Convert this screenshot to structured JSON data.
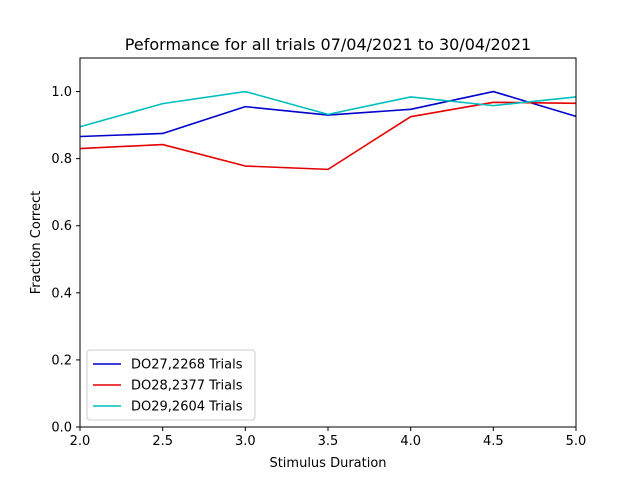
{
  "chart_data": {
    "type": "line",
    "title": "Peformance for all trials 07/04/2021 to 30/04/2021",
    "xlabel": "Stimulus Duration",
    "ylabel": "Fraction Correct",
    "xlim": [
      2.0,
      5.0
    ],
    "ylim": [
      0.0,
      1.1
    ],
    "x": [
      2.0,
      2.5,
      3.0,
      3.5,
      4.0,
      4.5,
      5.0
    ],
    "xticks": [
      "2.0",
      "2.5",
      "3.0",
      "3.5",
      "4.0",
      "4.5",
      "5.0"
    ],
    "yticks": [
      "0.0",
      "0.2",
      "0.4",
      "0.6",
      "0.8",
      "1.0"
    ],
    "grid": false,
    "legend_position": "lower-left",
    "series": [
      {
        "name": "DO27,2268 Trials",
        "color": "#0000cc",
        "values": [
          0.866,
          0.875,
          0.955,
          0.93,
          0.947,
          1.0,
          0.926
        ]
      },
      {
        "name": "DO28,2377 Trials",
        "color": "#e50000",
        "values": [
          0.83,
          0.842,
          0.778,
          0.768,
          0.925,
          0.968,
          0.965
        ]
      },
      {
        "name": "DO29,2604 Trials",
        "color": "#00bfbf",
        "values": [
          0.895,
          0.964,
          1.0,
          0.932,
          0.984,
          0.958,
          0.984
        ]
      }
    ]
  }
}
